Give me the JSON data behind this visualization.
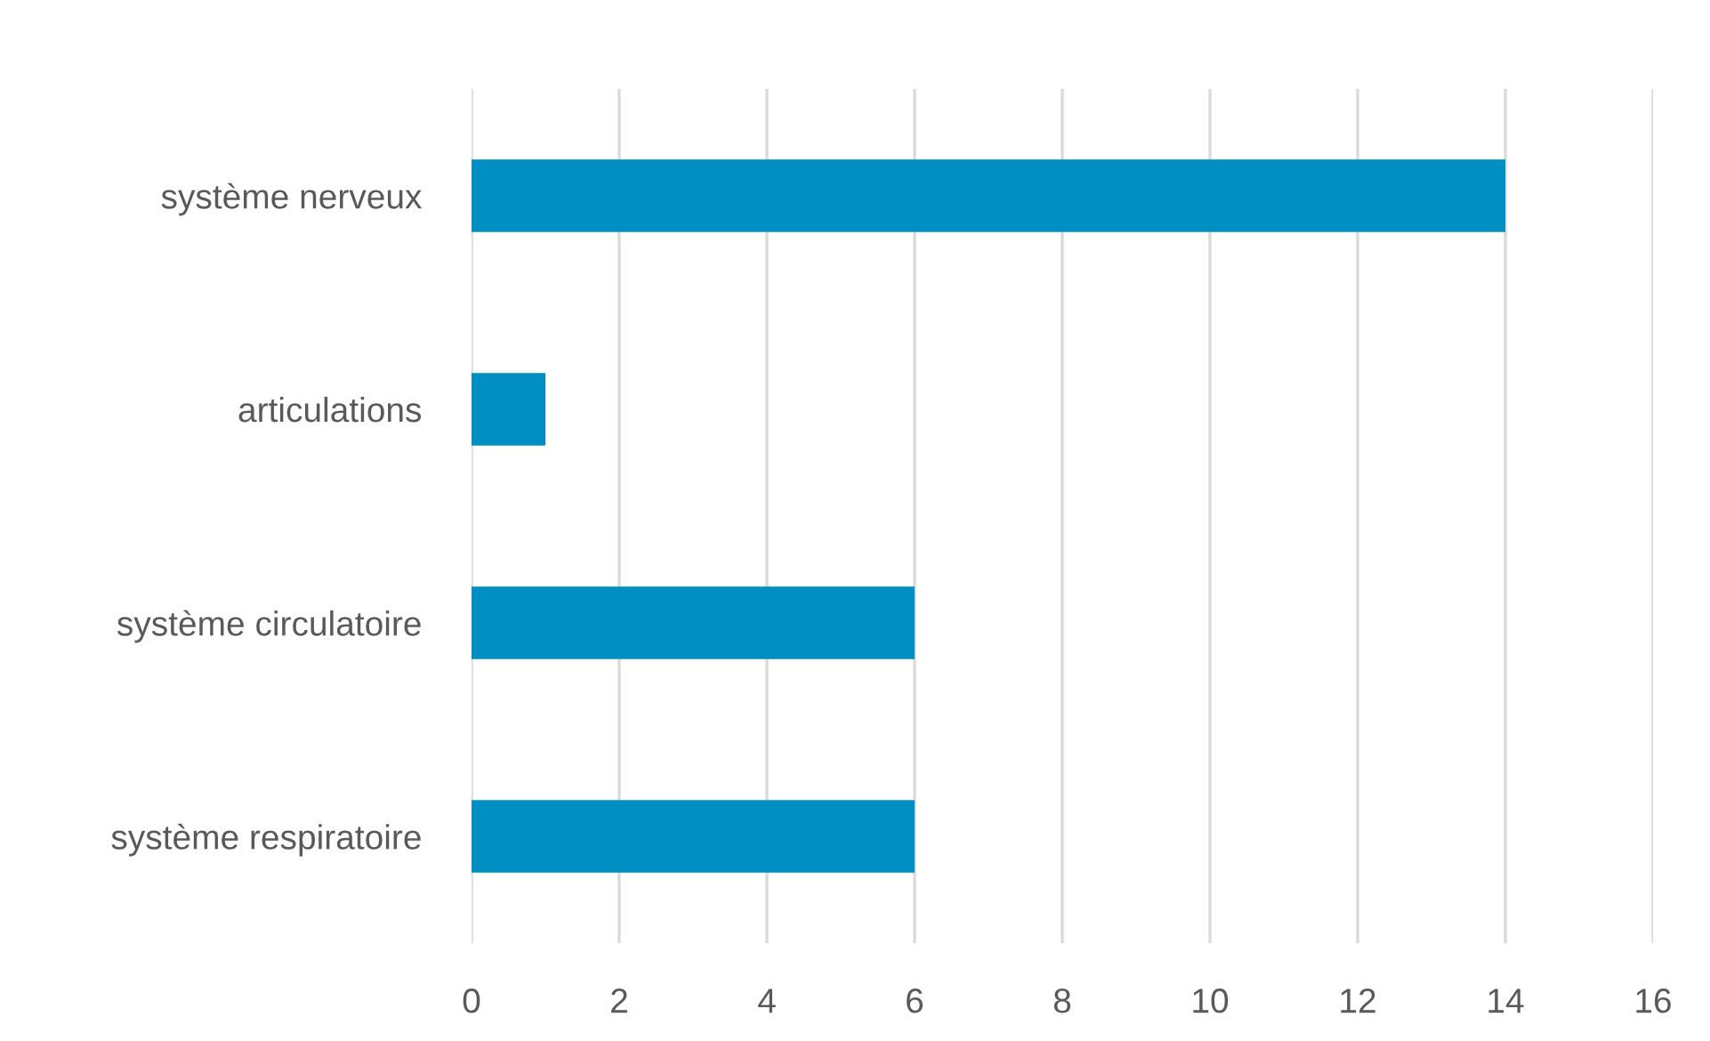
{
  "chart_data": {
    "type": "bar",
    "orientation": "horizontal",
    "categories": [
      "système nerveux",
      "articulations",
      "système circulatoire",
      "système respiratoire"
    ],
    "values": [
      14,
      1,
      6,
      6
    ],
    "color": "#008fc3",
    "xlim": [
      0,
      16
    ],
    "xticks": [
      0,
      2,
      4,
      6,
      8,
      10,
      12,
      14,
      16
    ],
    "grid": "x"
  }
}
